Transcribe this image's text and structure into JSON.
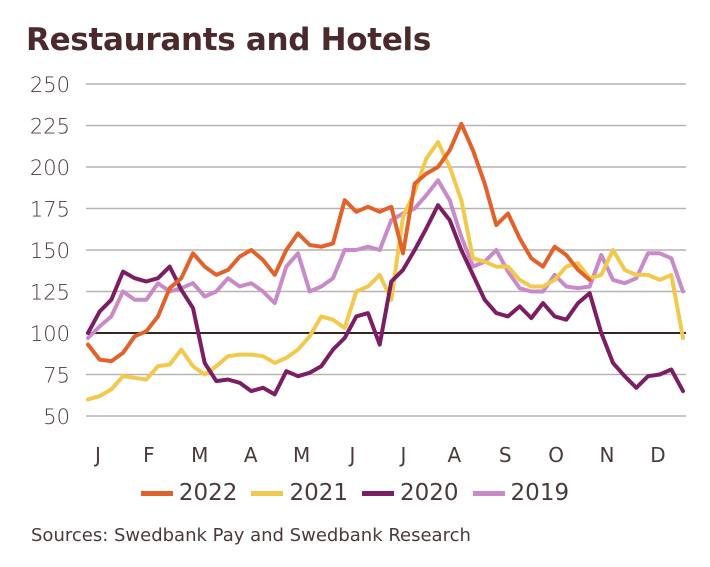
{
  "chart_data": {
    "type": "line",
    "title": "Restaurants and Hotels",
    "xlabel": "",
    "ylabel": "",
    "ylim": [
      50,
      250
    ],
    "yticks": [
      250,
      225,
      200,
      175,
      150,
      125,
      100,
      75,
      50
    ],
    "reference_line": 100,
    "grid": true,
    "legend_position": "bottom",
    "months": [
      "J",
      "F",
      "M",
      "A",
      "M",
      "J",
      "J",
      "A",
      "S",
      "O",
      "N",
      "D"
    ],
    "x_unit": "week",
    "x": [
      1,
      2,
      3,
      4,
      5,
      6,
      7,
      8,
      9,
      10,
      11,
      12,
      13,
      14,
      15,
      16,
      17,
      18,
      19,
      20,
      21,
      22,
      23,
      24,
      25,
      26,
      27,
      28,
      29,
      30,
      31,
      32,
      33,
      34,
      35,
      36,
      37,
      38,
      39,
      40,
      41,
      42,
      43,
      44,
      45,
      46,
      47,
      48,
      49,
      50,
      51,
      52
    ],
    "series": [
      {
        "name": "2022",
        "color": "#e2622b",
        "values": [
          93,
          84,
          83,
          88,
          98,
          101,
          110,
          127,
          133,
          148,
          140,
          135,
          138,
          146,
          150,
          144,
          135,
          150,
          160,
          153,
          152,
          154,
          180,
          173,
          176,
          173,
          176,
          148,
          190,
          196,
          200,
          210,
          226,
          210,
          190,
          165,
          172,
          157,
          145,
          140,
          152,
          147,
          138,
          132,
          null,
          null,
          null,
          null,
          null,
          null,
          null,
          null
        ]
      },
      {
        "name": "2021",
        "color": "#f2c94c",
        "values": [
          60,
          62,
          66,
          74,
          73,
          72,
          80,
          81,
          90,
          80,
          75,
          80,
          86,
          87,
          87,
          86,
          82,
          85,
          90,
          98,
          110,
          108,
          103,
          125,
          128,
          135,
          120,
          170,
          185,
          205,
          215,
          200,
          180,
          145,
          143,
          140,
          140,
          132,
          128,
          128,
          132,
          140,
          142,
          133,
          135,
          150,
          138,
          135,
          135,
          132,
          135,
          97
        ]
      },
      {
        "name": "2020",
        "color": "#7b1e63",
        "values": [
          100,
          113,
          120,
          137,
          133,
          131,
          133,
          140,
          126,
          115,
          82,
          71,
          72,
          70,
          65,
          67,
          63,
          77,
          74,
          76,
          80,
          90,
          97,
          110,
          112,
          93,
          131,
          138,
          150,
          163,
          177,
          168,
          150,
          135,
          120,
          112,
          110,
          116,
          109,
          118,
          110,
          108,
          118,
          124,
          100,
          82,
          74,
          67,
          74,
          75,
          78,
          65
        ]
      },
      {
        "name": "2019",
        "color": "#c98ac8",
        "values": [
          97,
          104,
          110,
          125,
          120,
          120,
          130,
          125,
          127,
          130,
          122,
          125,
          133,
          128,
          130,
          125,
          118,
          140,
          148,
          125,
          128,
          133,
          150,
          150,
          152,
          150,
          168,
          172,
          175,
          183,
          192,
          180,
          158,
          140,
          143,
          150,
          137,
          127,
          125,
          125,
          135,
          128,
          127,
          128,
          147,
          132,
          130,
          133,
          148,
          148,
          145,
          125
        ]
      }
    ]
  },
  "footer": {
    "source": "Sources: Swedbank Pay and Swedbank Research"
  }
}
